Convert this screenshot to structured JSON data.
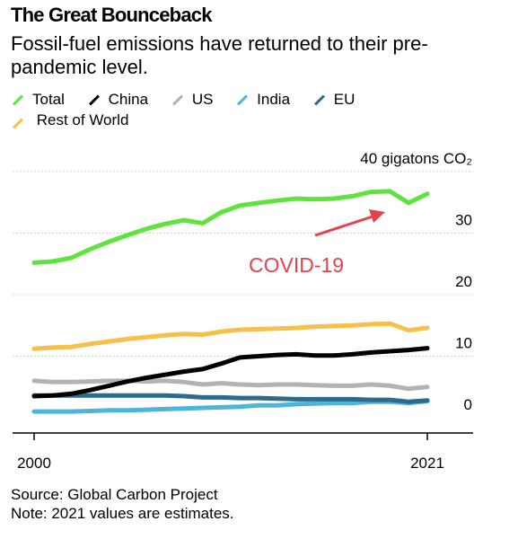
{
  "header": {
    "title": "The Great Bounceback",
    "subtitle": "Fossil-fuel emissions have returned to their pre-pandemic level."
  },
  "footer": {
    "source": "Source: Global Carbon Project",
    "note": "Note: 2021 values are estimates."
  },
  "chart_data": {
    "type": "line",
    "title": "The Great Bounceback",
    "subtitle": "Fossil-fuel emissions have returned to their pre-pandemic level.",
    "xlabel": "",
    "ylabel": "",
    "unit_label": "40 gigatons CO₂",
    "x_tick_labels": [
      "2000",
      "2021"
    ],
    "y_tick_labels": [
      "0",
      "10",
      "20",
      "30"
    ],
    "xlim": [
      2000,
      2021
    ],
    "ylim": [
      0,
      40
    ],
    "y_ticks": [
      0,
      10,
      20,
      30,
      40
    ],
    "grid": true,
    "legend_position": "top",
    "annotation": {
      "text": "COVID-19",
      "color": "#e8414a",
      "points_to_year": 2020
    },
    "x": [
      2000,
      2001,
      2002,
      2003,
      2004,
      2005,
      2006,
      2007,
      2008,
      2009,
      2010,
      2011,
      2012,
      2013,
      2014,
      2015,
      2016,
      2017,
      2018,
      2019,
      2020,
      2021
    ],
    "series": [
      {
        "name": "Total",
        "color": "#5fe33d",
        "values": [
          25.2,
          25.4,
          26.0,
          27.4,
          28.6,
          29.7,
          30.7,
          31.5,
          32.1,
          31.6,
          33.4,
          34.5,
          34.9,
          35.3,
          35.6,
          35.5,
          35.6,
          36.0,
          36.7,
          36.8,
          34.9,
          36.4
        ]
      },
      {
        "name": "China",
        "color": "#000000",
        "values": [
          3.5,
          3.6,
          3.9,
          4.5,
          5.2,
          5.9,
          6.5,
          7.0,
          7.5,
          7.9,
          8.8,
          9.8,
          10.0,
          10.2,
          10.3,
          10.1,
          10.1,
          10.3,
          10.6,
          10.8,
          11.0,
          11.3
        ]
      },
      {
        "name": "US",
        "color": "#b3b3b3",
        "values": [
          6.0,
          5.8,
          5.8,
          5.9,
          6.0,
          6.0,
          5.9,
          6.0,
          5.8,
          5.4,
          5.6,
          5.4,
          5.3,
          5.4,
          5.4,
          5.3,
          5.2,
          5.2,
          5.4,
          5.2,
          4.7,
          5.0
        ]
      },
      {
        "name": "India",
        "color": "#4db5d9",
        "values": [
          1.0,
          1.0,
          1.0,
          1.1,
          1.2,
          1.2,
          1.3,
          1.4,
          1.5,
          1.6,
          1.7,
          1.8,
          2.0,
          2.0,
          2.2,
          2.3,
          2.4,
          2.4,
          2.6,
          2.6,
          2.4,
          2.7
        ]
      },
      {
        "name": "EU",
        "color": "#2d6b8a",
        "values": [
          3.6,
          3.6,
          3.6,
          3.6,
          3.6,
          3.6,
          3.6,
          3.6,
          3.5,
          3.3,
          3.3,
          3.2,
          3.2,
          3.1,
          3.0,
          3.0,
          3.0,
          3.0,
          2.9,
          2.9,
          2.6,
          2.8
        ]
      },
      {
        "name": "Rest of World",
        "color": "#f7c04a",
        "values": [
          11.2,
          11.4,
          11.5,
          12.0,
          12.4,
          12.8,
          13.1,
          13.4,
          13.6,
          13.5,
          14.0,
          14.3,
          14.4,
          14.5,
          14.6,
          14.8,
          14.9,
          15.0,
          15.2,
          15.3,
          14.2,
          14.6
        ]
      }
    ]
  }
}
